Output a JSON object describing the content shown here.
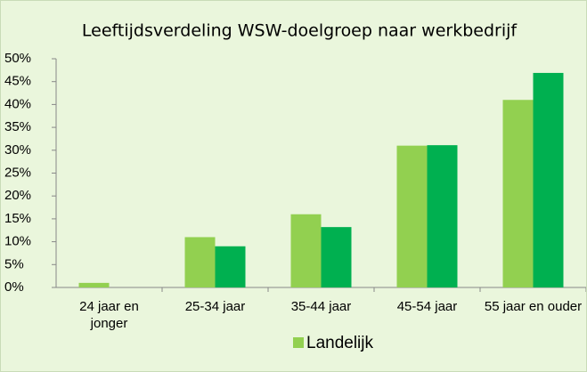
{
  "chart_data": {
    "type": "bar",
    "title": "Leeftijdsverdeling WSW-doelgroep naar werkbedrijf",
    "categories": [
      "24 jaar en jonger",
      "25-34 jaar",
      "35-44 jaar",
      "45-54 jaar",
      "55 jaar en ouder"
    ],
    "series": [
      {
        "name": "Landelijk",
        "color": "#92d050",
        "values": [
          1,
          11,
          16,
          31,
          41
        ]
      },
      {
        "color": "#00b050",
        "values": [
          0,
          9,
          13.2,
          31.1,
          46.9
        ]
      }
    ],
    "ylim": [
      0,
      50
    ],
    "yticks": [
      {
        "value": 0,
        "label": "0%"
      },
      {
        "value": 5,
        "label": "5%"
      },
      {
        "value": 10,
        "label": "10%"
      },
      {
        "value": 15,
        "label": "15%"
      },
      {
        "value": 20,
        "label": "20%"
      },
      {
        "value": 25,
        "label": "25%"
      },
      {
        "value": 30,
        "label": "30%"
      },
      {
        "value": 35,
        "label": "35%"
      },
      {
        "value": 40,
        "label": "40%"
      },
      {
        "value": 45,
        "label": "45%"
      },
      {
        "value": 50,
        "label": "50%"
      }
    ],
    "legend": "bottom"
  }
}
